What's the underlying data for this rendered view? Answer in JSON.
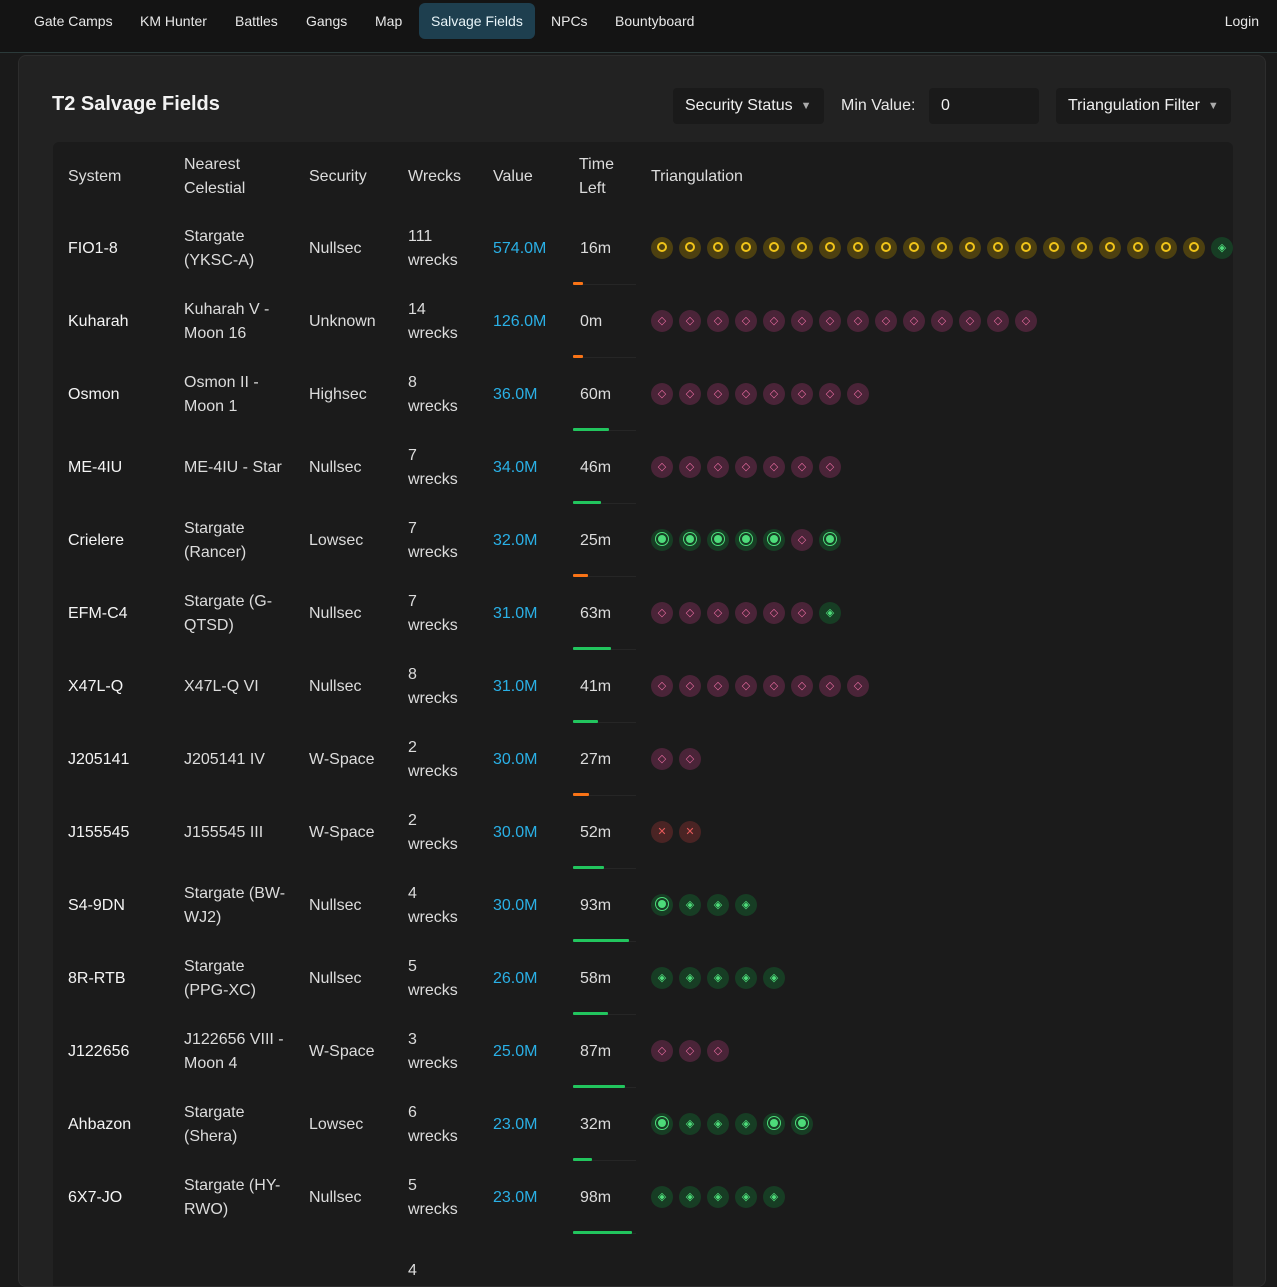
{
  "nav": {
    "items": [
      "Gate Camps",
      "KM Hunter",
      "Battles",
      "Gangs",
      "Map",
      "Salvage Fields",
      "NPCs",
      "Bountyboard"
    ],
    "active": "Salvage Fields",
    "login": "Login"
  },
  "page": {
    "title": "T2 Salvage Fields",
    "security_filter": "Security Status",
    "min_value_label": "Min Value:",
    "min_value": "0",
    "triangulation_filter": "Triangulation Filter"
  },
  "colors": {
    "accent": "#2ab0e6",
    "bar_green": "#22c55e",
    "bar_orange": "#f97316",
    "nav_active": "#1e3f4f"
  },
  "table": {
    "headers": [
      "System",
      "Nearest Celestial",
      "Security",
      "Wrecks",
      "Value",
      "Time Left",
      "Triangulation"
    ],
    "rows": [
      {
        "system": "FIO1-8",
        "celestial": "Stargate (YKSC-A)",
        "security": "Nullsec",
        "wrecks": "111 wrecks",
        "value": "574.0M",
        "time": "16m",
        "time_minutes": 16,
        "bar": "orange",
        "tri": [
          "gold",
          "gold",
          "gold",
          "gold",
          "gold",
          "gold",
          "gold",
          "gold",
          "gold",
          "gold",
          "gold",
          "gold",
          "gold",
          "gold",
          "gold",
          "gold",
          "gold",
          "gold",
          "gold",
          "gold",
          "green-diamond"
        ]
      },
      {
        "system": "Kuharah",
        "celestial": "Kuharah V - Moon 16",
        "security": "Unknown",
        "wrecks": "14 wrecks",
        "value": "126.0M",
        "time": "0m",
        "time_minutes": 0,
        "bar": "orange",
        "tri": [
          "pink",
          "pink",
          "pink",
          "pink",
          "pink",
          "pink",
          "pink",
          "pink",
          "pink",
          "pink",
          "pink",
          "pink",
          "pink",
          "pink"
        ]
      },
      {
        "system": "Osmon",
        "celestial": "Osmon II - Moon 1",
        "security": "Highsec",
        "wrecks": "8 wrecks",
        "value": "36.0M",
        "time": "60m",
        "time_minutes": 60,
        "bar": "green",
        "tri": [
          "pink",
          "pink",
          "pink",
          "pink",
          "pink",
          "pink",
          "pink",
          "pink"
        ]
      },
      {
        "system": "ME-4IU",
        "celestial": "ME-4IU - Star",
        "security": "Nullsec",
        "wrecks": "7 wrecks",
        "value": "34.0M",
        "time": "46m",
        "time_minutes": 46,
        "bar": "green",
        "tri": [
          "pink",
          "pink",
          "pink",
          "pink",
          "pink",
          "pink",
          "pink"
        ]
      },
      {
        "system": "Crielere",
        "celestial": "Stargate (Rancer)",
        "security": "Lowsec",
        "wrecks": "7 wrecks",
        "value": "32.0M",
        "time": "25m",
        "time_minutes": 25,
        "bar": "orange",
        "tri": [
          "green-dot",
          "green-dot",
          "green-dot",
          "green-dot",
          "green-dot",
          "pink",
          "green-dot"
        ]
      },
      {
        "system": "EFM-C4",
        "celestial": "Stargate (G-QTSD)",
        "security": "Nullsec",
        "wrecks": "7 wrecks",
        "value": "31.0M",
        "time": "63m",
        "time_minutes": 63,
        "bar": "green",
        "tri": [
          "pink",
          "pink",
          "pink",
          "pink",
          "pink",
          "pink",
          "green-diamond"
        ]
      },
      {
        "system": "X47L-Q",
        "celestial": "X47L-Q VI",
        "security": "Nullsec",
        "wrecks": "8 wrecks",
        "value": "31.0M",
        "time": "41m",
        "time_minutes": 41,
        "bar": "green",
        "tri": [
          "pink",
          "pink",
          "pink",
          "pink",
          "pink",
          "pink",
          "pink",
          "pink"
        ]
      },
      {
        "system": "J205141",
        "celestial": "J205141 IV",
        "security": "W-Space",
        "wrecks": "2 wrecks",
        "value": "30.0M",
        "time": "27m",
        "time_minutes": 27,
        "bar": "orange",
        "tri": [
          "pink",
          "pink"
        ]
      },
      {
        "system": "J155545",
        "celestial": "J155545 III",
        "security": "W-Space",
        "wrecks": "2 wrecks",
        "value": "30.0M",
        "time": "52m",
        "time_minutes": 52,
        "bar": "green",
        "tri": [
          "red",
          "red"
        ]
      },
      {
        "system": "S4-9DN",
        "celestial": "Stargate (BW-WJ2)",
        "security": "Nullsec",
        "wrecks": "4 wrecks",
        "value": "30.0M",
        "time": "93m",
        "time_minutes": 93,
        "bar": "green",
        "tri": [
          "green-dot",
          "green-diamond",
          "green-diamond",
          "green-diamond"
        ]
      },
      {
        "system": "8R-RTB",
        "celestial": "Stargate (PPG-XC)",
        "security": "Nullsec",
        "wrecks": "5 wrecks",
        "value": "26.0M",
        "time": "58m",
        "time_minutes": 58,
        "bar": "green",
        "tri": [
          "green-diamond",
          "green-diamond",
          "green-diamond",
          "green-diamond",
          "green-diamond"
        ]
      },
      {
        "system": "J122656",
        "celestial": "J122656 VIII - Moon 4",
        "security": "W-Space",
        "wrecks": "3 wrecks",
        "value": "25.0M",
        "time": "87m",
        "time_minutes": 87,
        "bar": "green",
        "tri": [
          "pink",
          "pink",
          "pink"
        ]
      },
      {
        "system": "Ahbazon",
        "celestial": "Stargate (Shera)",
        "security": "Lowsec",
        "wrecks": "6 wrecks",
        "value": "23.0M",
        "time": "32m",
        "time_minutes": 32,
        "bar": "green",
        "tri": [
          "green-dot",
          "green-diamond",
          "green-diamond",
          "green-diamond",
          "green-dot",
          "green-dot"
        ]
      },
      {
        "system": "6X7-JO",
        "celestial": "Stargate (HY-RWO)",
        "security": "Nullsec",
        "wrecks": "5 wrecks",
        "value": "23.0M",
        "time": "98m",
        "time_minutes": 98,
        "bar": "green",
        "tri": [
          "green-diamond",
          "green-diamond",
          "green-diamond",
          "green-diamond",
          "green-diamond"
        ]
      },
      {
        "system": "",
        "celestial": "",
        "security": "",
        "wrecks": "4",
        "value": "",
        "time": "",
        "time_minutes": null,
        "bar": "none",
        "tri": []
      }
    ]
  }
}
